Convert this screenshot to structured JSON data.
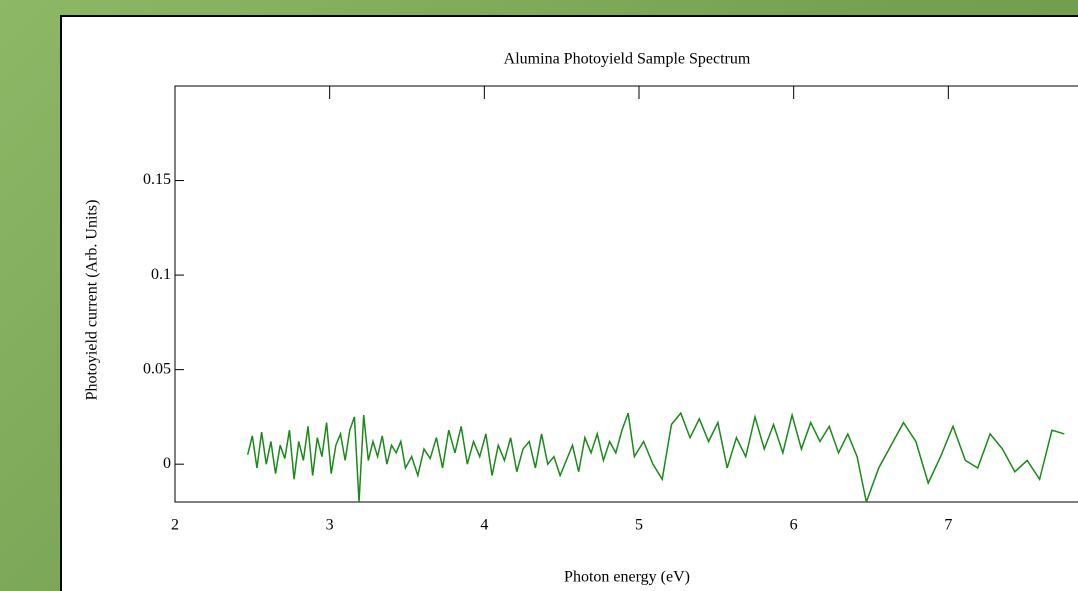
{
  "chart_data": {
    "type": "line",
    "title": "Alumina Photoyield Sample Spectrum",
    "x_label": "Photon energy (eV)",
    "y_label": "Photoyield current (Arb. Units)",
    "color": "#1a8a1a",
    "xlim": [
      2,
      8
    ],
    "ylim": [
      -0.02,
      0.2
    ],
    "xticks": [
      2,
      3,
      4,
      5,
      6,
      7
    ],
    "yticks": [
      0,
      0.05,
      0.1,
      0.15
    ],
    "grid": false,
    "x": [
      2.47,
      2.5,
      2.53,
      2.56,
      2.59,
      2.62,
      2.65,
      2.68,
      2.71,
      2.74,
      2.77,
      2.8,
      2.83,
      2.86,
      2.89,
      2.92,
      2.95,
      2.98,
      3.01,
      3.04,
      3.07,
      3.1,
      3.13,
      3.16,
      3.19,
      3.22,
      3.25,
      3.28,
      3.31,
      3.34,
      3.37,
      3.4,
      3.43,
      3.46,
      3.49,
      3.53,
      3.57,
      3.61,
      3.65,
      3.69,
      3.73,
      3.77,
      3.81,
      3.85,
      3.89,
      3.93,
      3.97,
      4.01,
      4.05,
      4.09,
      4.13,
      4.17,
      4.21,
      4.25,
      4.29,
      4.33,
      4.37,
      4.41,
      4.45,
      4.49,
      4.53,
      4.57,
      4.61,
      4.65,
      4.69,
      4.73,
      4.77,
      4.81,
      4.85,
      4.89,
      4.93,
      4.97,
      5.03,
      5.09,
      5.15,
      5.21,
      5.27,
      5.33,
      5.39,
      5.45,
      5.51,
      5.57,
      5.63,
      5.69,
      5.75,
      5.81,
      5.87,
      5.93,
      5.99,
      6.05,
      6.11,
      6.17,
      6.23,
      6.29,
      6.35,
      6.41,
      6.47,
      6.55,
      6.63,
      6.71,
      6.79,
      6.87,
      6.95,
      7.03,
      7.11,
      7.19,
      7.27,
      7.35,
      7.43,
      7.51,
      7.59,
      7.67,
      7.75
    ],
    "values": [
      0.005,
      0.015,
      -0.002,
      0.017,
      0.0,
      0.012,
      -0.005,
      0.01,
      0.003,
      0.018,
      -0.008,
      0.012,
      0.002,
      0.02,
      -0.006,
      0.014,
      0.004,
      0.022,
      -0.005,
      0.01,
      0.016,
      0.002,
      0.018,
      0.025,
      -0.02,
      0.026,
      0.002,
      0.012,
      0.004,
      0.015,
      0.0,
      0.01,
      0.006,
      0.012,
      -0.002,
      0.004,
      -0.006,
      0.008,
      0.003,
      0.014,
      -0.002,
      0.018,
      0.006,
      0.02,
      0.0,
      0.012,
      0.004,
      0.016,
      -0.006,
      0.01,
      0.002,
      0.014,
      -0.004,
      0.008,
      0.012,
      -0.002,
      0.016,
      0.0,
      0.004,
      -0.006,
      0.002,
      0.01,
      -0.004,
      0.014,
      0.006,
      0.016,
      0.002,
      0.012,
      0.006,
      0.018,
      0.027,
      0.004,
      0.012,
      0.0,
      -0.008,
      0.021,
      0.027,
      0.014,
      0.024,
      0.012,
      0.022,
      -0.002,
      0.014,
      0.004,
      0.025,
      0.008,
      0.021,
      0.006,
      0.026,
      0.008,
      0.022,
      0.012,
      0.02,
      0.006,
      0.016,
      0.004,
      -0.02,
      -0.002,
      0.01,
      0.022,
      0.012,
      -0.01,
      0.004,
      0.02,
      0.002,
      -0.002,
      0.016,
      0.008,
      -0.004,
      0.002,
      -0.008,
      0.018,
      0.016
    ]
  }
}
